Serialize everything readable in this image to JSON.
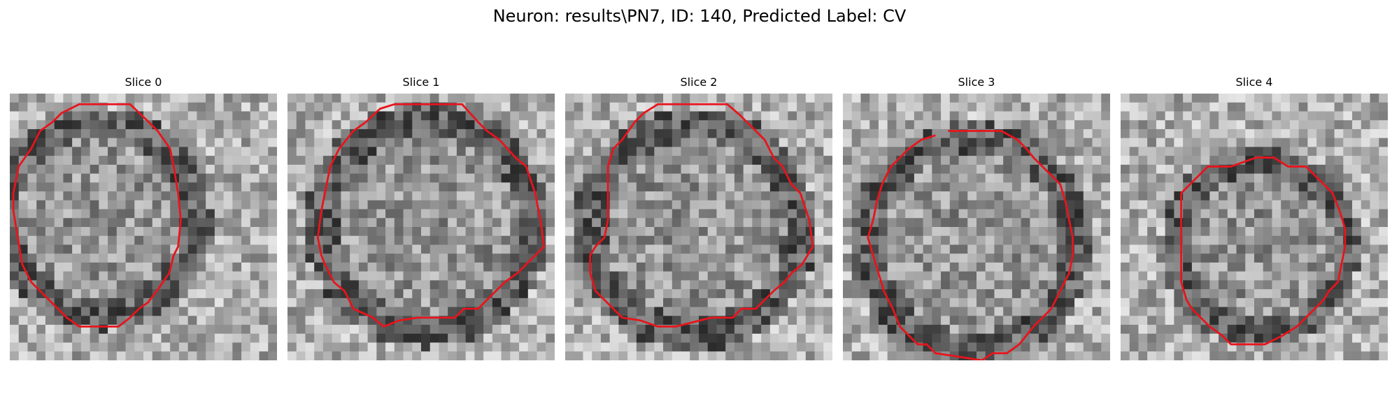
{
  "figure": {
    "title": "Neuron: results\\PN7, ID: 140, Predicted Label: CV",
    "contour_color": "#e8141c"
  },
  "panels": [
    {
      "title": "Slice 0",
      "contour": [
        [
          90,
          12
        ],
        [
          135,
          12
        ],
        [
          156,
          32
        ],
        [
          166,
          42
        ],
        [
          173,
          52
        ],
        [
          180,
          62
        ],
        [
          184,
          82
        ],
        [
          189,
          112
        ],
        [
          192,
          142
        ],
        [
          189,
          172
        ],
        [
          184,
          182
        ],
        [
          179,
          202
        ],
        [
          172,
          212
        ],
        [
          165,
          222
        ],
        [
          155,
          235
        ],
        [
          145,
          242
        ],
        [
          135,
          252
        ],
        [
          122,
          262
        ],
        [
          100,
          262
        ],
        [
          78,
          262
        ],
        [
          64,
          252
        ],
        [
          54,
          242
        ],
        [
          44,
          232
        ],
        [
          34,
          222
        ],
        [
          24,
          212
        ],
        [
          14,
          192
        ],
        [
          9,
          162
        ],
        [
          4,
          132
        ],
        [
          4,
          112
        ],
        [
          10,
          82
        ],
        [
          24,
          62
        ],
        [
          34,
          42
        ],
        [
          48,
          32
        ],
        [
          58,
          22
        ],
        [
          68,
          17
        ],
        [
          78,
          12
        ]
      ],
      "closed": true
    },
    {
      "title": "Slice 1",
      "contour": [
        [
          120,
          12
        ],
        [
          160,
          12
        ],
        [
          196,
          12
        ],
        [
          214,
          32
        ],
        [
          224,
          42
        ],
        [
          238,
          52
        ],
        [
          256,
          72
        ],
        [
          268,
          82
        ],
        [
          278,
          112
        ],
        [
          284,
          142
        ],
        [
          288,
          172
        ],
        [
          278,
          182
        ],
        [
          268,
          192
        ],
        [
          258,
          202
        ],
        [
          244,
          212
        ],
        [
          224,
          232
        ],
        [
          214,
          242
        ],
        [
          198,
          242
        ],
        [
          188,
          252
        ],
        [
          166,
          252
        ],
        [
          146,
          252
        ],
        [
          126,
          255
        ],
        [
          108,
          262
        ],
        [
          96,
          252
        ],
        [
          74,
          242
        ],
        [
          64,
          222
        ],
        [
          52,
          212
        ],
        [
          42,
          192
        ],
        [
          38,
          182
        ],
        [
          34,
          162
        ],
        [
          38,
          132
        ],
        [
          44,
          102
        ],
        [
          48,
          82
        ],
        [
          58,
          62
        ],
        [
          74,
          42
        ],
        [
          88,
          32
        ],
        [
          104,
          17
        ]
      ],
      "closed": true
    },
    {
      "title": "Slice 2",
      "contour": [
        [
          104,
          12
        ],
        [
          144,
          12
        ],
        [
          182,
          12
        ],
        [
          196,
          24
        ],
        [
          214,
          42
        ],
        [
          224,
          52
        ],
        [
          234,
          72
        ],
        [
          244,
          82
        ],
        [
          254,
          102
        ],
        [
          264,
          112
        ],
        [
          274,
          142
        ],
        [
          278,
          172
        ],
        [
          266,
          192
        ],
        [
          254,
          202
        ],
        [
          246,
          212
        ],
        [
          234,
          222
        ],
        [
          224,
          232
        ],
        [
          214,
          242
        ],
        [
          198,
          242
        ],
        [
          188,
          252
        ],
        [
          164,
          252
        ],
        [
          144,
          257
        ],
        [
          124,
          262
        ],
        [
          104,
          262
        ],
        [
          84,
          255
        ],
        [
          64,
          252
        ],
        [
          54,
          242
        ],
        [
          44,
          232
        ],
        [
          34,
          222
        ],
        [
          28,
          202
        ],
        [
          28,
          182
        ],
        [
          34,
          172
        ],
        [
          44,
          162
        ],
        [
          48,
          142
        ],
        [
          48,
          112
        ],
        [
          48,
          82
        ],
        [
          54,
          62
        ],
        [
          64,
          52
        ],
        [
          78,
          32
        ],
        [
          88,
          22
        ]
      ],
      "closed": true
    },
    {
      "title": "Slice 3",
      "contour": [
        [
          118,
          42
        ],
        [
          148,
          42
        ],
        [
          178,
          42
        ],
        [
          196,
          52
        ],
        [
          206,
          62
        ],
        [
          214,
          72
        ],
        [
          224,
          82
        ],
        [
          234,
          92
        ],
        [
          244,
          102
        ],
        [
          250,
          122
        ],
        [
          254,
          142
        ],
        [
          258,
          162
        ],
        [
          258,
          182
        ],
        [
          254,
          202
        ],
        [
          244,
          222
        ],
        [
          234,
          242
        ],
        [
          224,
          252
        ],
        [
          214,
          262
        ],
        [
          198,
          282
        ],
        [
          184,
          292
        ],
        [
          168,
          292
        ],
        [
          156,
          300
        ],
        [
          124,
          295
        ],
        [
          104,
          292
        ],
        [
          94,
          282
        ],
        [
          84,
          282
        ],
        [
          74,
          272
        ],
        [
          64,
          262
        ],
        [
          56,
          242
        ],
        [
          46,
          222
        ],
        [
          40,
          202
        ],
        [
          34,
          182
        ],
        [
          28,
          162
        ],
        [
          34,
          142
        ],
        [
          38,
          122
        ],
        [
          44,
          102
        ],
        [
          54,
          82
        ],
        [
          64,
          72
        ],
        [
          74,
          62
        ],
        [
          88,
          52
        ],
        [
          104,
          47
        ]
      ],
      "closed": false
    },
    {
      "title": "Slice 4",
      "contour": [
        [
          152,
          72
        ],
        [
          172,
          72
        ],
        [
          188,
          82
        ],
        [
          208,
          82
        ],
        [
          218,
          92
        ],
        [
          228,
          102
        ],
        [
          238,
          112
        ],
        [
          246,
          132
        ],
        [
          252,
          152
        ],
        [
          252,
          172
        ],
        [
          248,
          192
        ],
        [
          244,
          212
        ],
        [
          234,
          222
        ],
        [
          228,
          232
        ],
        [
          218,
          242
        ],
        [
          208,
          252
        ],
        [
          198,
          262
        ],
        [
          182,
          272
        ],
        [
          162,
          282
        ],
        [
          142,
          282
        ],
        [
          124,
          282
        ],
        [
          114,
          272
        ],
        [
          100,
          262
        ],
        [
          90,
          252
        ],
        [
          80,
          242
        ],
        [
          74,
          232
        ],
        [
          68,
          212
        ],
        [
          68,
          192
        ],
        [
          68,
          162
        ],
        [
          68,
          132
        ],
        [
          68,
          112
        ],
        [
          78,
          102
        ],
        [
          88,
          92
        ],
        [
          98,
          82
        ],
        [
          108,
          82
        ],
        [
          124,
          82
        ],
        [
          138,
          77
        ]
      ],
      "closed": true
    }
  ]
}
